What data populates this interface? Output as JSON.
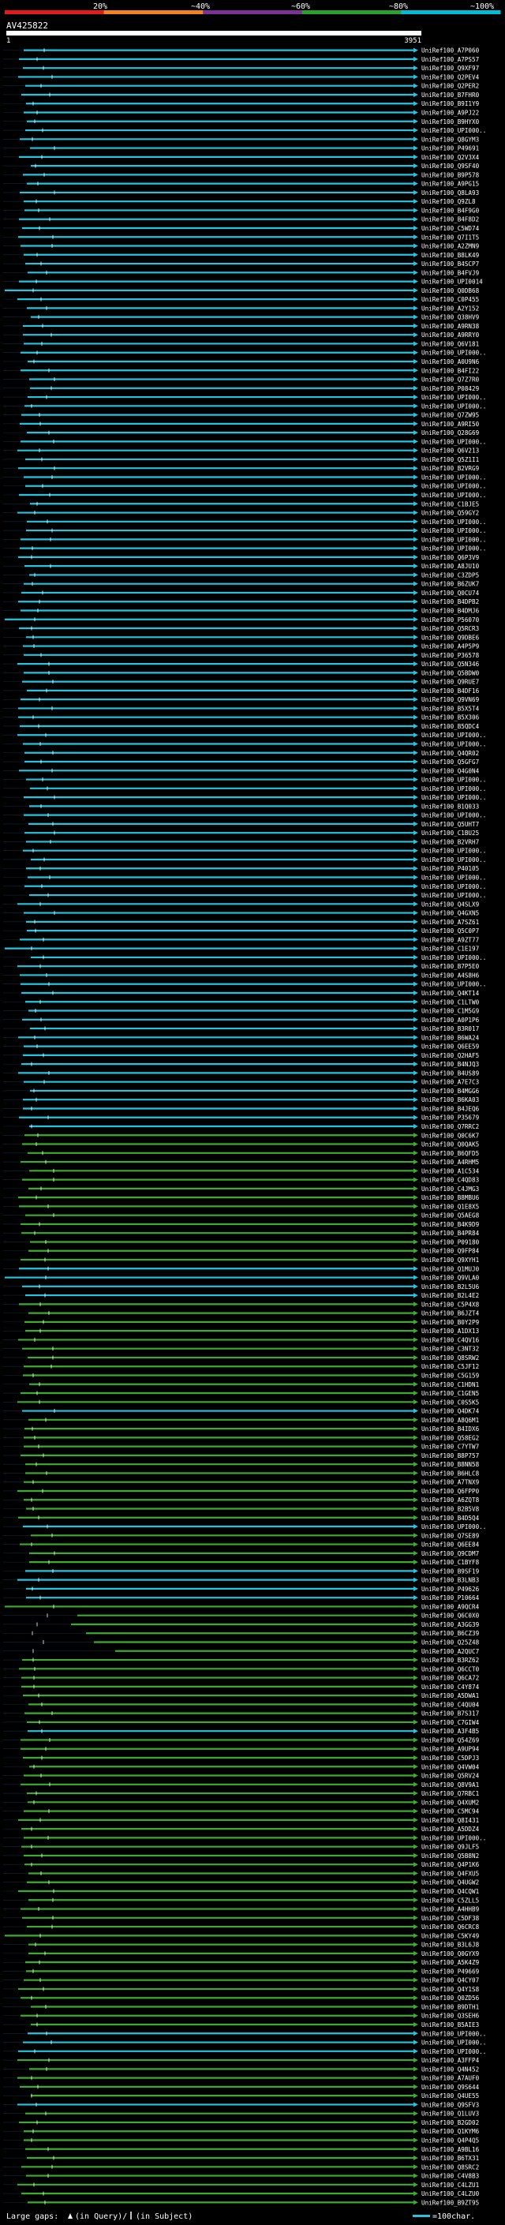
{
  "header": {
    "query_id": "AV425822",
    "scale_start": "1",
    "scale_end": "3951",
    "scale_ticks": [
      "20%",
      "~40%",
      "~60%",
      "~80%",
      "~100%"
    ],
    "scale_colors": [
      "#e41a1c",
      "#f58220",
      "#7b3294",
      "#2ca02c",
      "#00bcd4"
    ]
  },
  "legend": {
    "large_gaps_label": "Large gaps:",
    "in_query_label": "(in Query)/",
    "in_subject_label": "(in Subject)",
    "scale_label": "=100char."
  },
  "colors": {
    "cyan": "#22c5e0",
    "green": "#3cab2e",
    "white": "#ffffff",
    "black": "#000000"
  },
  "chart_data": {
    "type": "alignment",
    "query_length": 3951,
    "hits": [
      {
        "label": "UniRef100_A7P060",
        "color": "cyan"
      },
      {
        "label": "UniRef100_A7PS57",
        "color": "cyan"
      },
      {
        "label": "UniRef100_Q9XF97",
        "color": "cyan"
      },
      {
        "label": "UniRef100_Q2PEV4",
        "color": "cyan"
      },
      {
        "label": "UniRef100_Q2PER2",
        "color": "cyan"
      },
      {
        "label": "UniRef100_B7FHR0",
        "color": "cyan"
      },
      {
        "label": "UniRef100_B9I1Y9",
        "color": "cyan"
      },
      {
        "label": "UniRef100_A9PJ22",
        "color": "cyan"
      },
      {
        "label": "UniRef100_B9HYX0",
        "color": "cyan"
      },
      {
        "label": "UniRef100_UPI000..",
        "color": "cyan"
      },
      {
        "label": "UniRef100_Q8GYM3",
        "color": "cyan"
      },
      {
        "label": "UniRef100_P49691",
        "color": "cyan"
      },
      {
        "label": "UniRef100_Q2V3X4",
        "color": "cyan"
      },
      {
        "label": "UniRef100_Q9SF40",
        "color": "cyan"
      },
      {
        "label": "UniRef100_B9P578",
        "color": "cyan"
      },
      {
        "label": "UniRef100_A9PG15",
        "color": "cyan"
      },
      {
        "label": "UniRef100_Q8LA93",
        "color": "cyan"
      },
      {
        "label": "UniRef100_Q9ZL8",
        "color": "cyan"
      },
      {
        "label": "UniRef100_B4F9G0",
        "color": "cyan"
      },
      {
        "label": "UniRef100_B4F8D2",
        "color": "cyan"
      },
      {
        "label": "UniRef100_C5WD74",
        "color": "cyan"
      },
      {
        "label": "UniRef100_Q7I1T5",
        "color": "cyan"
      },
      {
        "label": "UniRef100_A2ZMN9",
        "color": "cyan"
      },
      {
        "label": "UniRef100_B8LK49",
        "color": "cyan"
      },
      {
        "label": "UniRef100_B4SCP7",
        "color": "cyan"
      },
      {
        "label": "UniRef100_B4FVJ9",
        "color": "cyan"
      },
      {
        "label": "UniRef100_UPI0014",
        "color": "cyan"
      },
      {
        "label": "UniRef100_Q0DB68",
        "color": "cyan"
      },
      {
        "label": "UniRef100_C0P455",
        "color": "cyan"
      },
      {
        "label": "UniRef100_A2Y152",
        "color": "cyan"
      },
      {
        "label": "UniRef100_Q38HV9",
        "color": "cyan"
      },
      {
        "label": "UniRef100_A9RN38",
        "color": "cyan"
      },
      {
        "label": "UniRef100_A9RRY0",
        "color": "cyan"
      },
      {
        "label": "UniRef100_Q6V181",
        "color": "cyan"
      },
      {
        "label": "UniRef100_UPI000..",
        "color": "cyan"
      },
      {
        "label": "UniRef100_A0U9N6",
        "color": "cyan"
      },
      {
        "label": "UniRef100_B4FI22",
        "color": "cyan"
      },
      {
        "label": "UniRef100_Q7Z7R0",
        "color": "cyan"
      },
      {
        "label": "UniRef100_P08429",
        "color": "cyan"
      },
      {
        "label": "UniRef100_UPI000..",
        "color": "cyan"
      },
      {
        "label": "UniRef100_UPI000..",
        "color": "cyan"
      },
      {
        "label": "UniRef100_Q7ZW95",
        "color": "cyan"
      },
      {
        "label": "UniRef100_A9RI50",
        "color": "cyan"
      },
      {
        "label": "UniRef100_Q28G69",
        "color": "cyan"
      },
      {
        "label": "UniRef100_UPI000..",
        "color": "cyan"
      },
      {
        "label": "UniRef100_Q6V213",
        "color": "cyan"
      },
      {
        "label": "UniRef100_Q5Z1I1",
        "color": "cyan"
      },
      {
        "label": "UniRef100_B2VRG9",
        "color": "cyan"
      },
      {
        "label": "UniRef100_UPI000..",
        "color": "cyan"
      },
      {
        "label": "UniRef100_UPI000..",
        "color": "cyan"
      },
      {
        "label": "UniRef100_UPI000..",
        "color": "cyan"
      },
      {
        "label": "UniRef100_C1BJE5",
        "color": "cyan"
      },
      {
        "label": "UniRef100_Q59GY2",
        "color": "cyan"
      },
      {
        "label": "UniRef100_UPI000..",
        "color": "cyan"
      },
      {
        "label": "UniRef100_UPI000..",
        "color": "cyan"
      },
      {
        "label": "UniRef100_UPI000..",
        "color": "cyan"
      },
      {
        "label": "UniRef100_UPI000..",
        "color": "cyan"
      },
      {
        "label": "UniRef100_Q6P3V9",
        "color": "cyan"
      },
      {
        "label": "UniRef100_A8JU10",
        "color": "cyan"
      },
      {
        "label": "UniRef100_C3ZDP5",
        "color": "cyan"
      },
      {
        "label": "UniRef100_B6ZUK7",
        "color": "cyan"
      },
      {
        "label": "UniRef100_Q0CU74",
        "color": "cyan"
      },
      {
        "label": "UniRef100_B4DPB2",
        "color": "cyan"
      },
      {
        "label": "UniRef100_B4DMJ6",
        "color": "cyan"
      },
      {
        "label": "UniRef100_P56070",
        "color": "cyan"
      },
      {
        "label": "UniRef100_Q5RCR3",
        "color": "cyan"
      },
      {
        "label": "UniRef100_Q9DBE6",
        "color": "cyan"
      },
      {
        "label": "UniRef100_A4P5P9",
        "color": "cyan"
      },
      {
        "label": "UniRef100_P36578",
        "color": "cyan"
      },
      {
        "label": "UniRef100_Q5N346",
        "color": "cyan"
      },
      {
        "label": "UniRef100_Q5BDW0",
        "color": "cyan"
      },
      {
        "label": "UniRef100_Q9RUE7",
        "color": "cyan"
      },
      {
        "label": "UniRef100_B4DF16",
        "color": "cyan"
      },
      {
        "label": "UniRef100_Q9VN69",
        "color": "cyan"
      },
      {
        "label": "UniRef100_B5X5T4",
        "color": "cyan"
      },
      {
        "label": "UniRef100_B5X306",
        "color": "cyan"
      },
      {
        "label": "UniRef100_B5QDC4",
        "color": "cyan"
      },
      {
        "label": "UniRef100_UPI000..",
        "color": "cyan"
      },
      {
        "label": "UniRef100_UPI000..",
        "color": "cyan"
      },
      {
        "label": "UniRef100_Q4QR02",
        "color": "cyan"
      },
      {
        "label": "UniRef100_Q5GFG7",
        "color": "cyan"
      },
      {
        "label": "UniRef100_Q4G0N4",
        "color": "cyan"
      },
      {
        "label": "UniRef100_UPI000..",
        "color": "cyan"
      },
      {
        "label": "UniRef100_UPI000..",
        "color": "cyan"
      },
      {
        "label": "UniRef100_UPI000..",
        "color": "cyan"
      },
      {
        "label": "UniRef100_B1Q033",
        "color": "cyan"
      },
      {
        "label": "UniRef100_UPI000..",
        "color": "cyan"
      },
      {
        "label": "UniRef100_Q5UHT7",
        "color": "cyan"
      },
      {
        "label": "UniRef100_C1BU25",
        "color": "cyan"
      },
      {
        "label": "UniRef100_B2VRH7",
        "color": "cyan"
      },
      {
        "label": "UniRef100_UPI000..",
        "color": "cyan"
      },
      {
        "label": "UniRef100_UPI000..",
        "color": "cyan"
      },
      {
        "label": "UniRef100_P40105",
        "color": "cyan"
      },
      {
        "label": "UniRef100_UPI000..",
        "color": "cyan"
      },
      {
        "label": "UniRef100_UPI000..",
        "color": "cyan"
      },
      {
        "label": "UniRef100_UPI000..",
        "color": "cyan"
      },
      {
        "label": "UniRef100_Q4SLX9",
        "color": "cyan"
      },
      {
        "label": "UniRef100_Q4GXN5",
        "color": "cyan"
      },
      {
        "label": "UniRef100_A7SZ61",
        "color": "cyan"
      },
      {
        "label": "UniRef100_Q5C0P7",
        "color": "cyan"
      },
      {
        "label": "UniRef100_A9ZT77",
        "color": "cyan"
      },
      {
        "label": "UniRef100_C1E197",
        "color": "cyan"
      },
      {
        "label": "UniRef100_UPI000..",
        "color": "cyan"
      },
      {
        "label": "UniRef100_B7P5E0",
        "color": "cyan"
      },
      {
        "label": "UniRef100_A4S8H6",
        "color": "cyan"
      },
      {
        "label": "UniRef100_UPI000..",
        "color": "cyan"
      },
      {
        "label": "UniRef100_Q4KT14",
        "color": "cyan"
      },
      {
        "label": "UniRef100_C1LTW0",
        "color": "cyan"
      },
      {
        "label": "UniRef100_C1M5G9",
        "color": "cyan"
      },
      {
        "label": "UniRef100_A0P1P6",
        "color": "cyan"
      },
      {
        "label": "UniRef100_B3R017",
        "color": "cyan"
      },
      {
        "label": "UniRef100_B6WA24",
        "color": "cyan"
      },
      {
        "label": "UniRef100_Q6EE59",
        "color": "cyan"
      },
      {
        "label": "UniRef100_Q2HAF5",
        "color": "cyan"
      },
      {
        "label": "UniRef100_B4NJQ3",
        "color": "cyan"
      },
      {
        "label": "UniRef100_B4US89",
        "color": "cyan"
      },
      {
        "label": "UniRef100_A7E7C3",
        "color": "cyan"
      },
      {
        "label": "UniRef100_B4MGG6",
        "color": "cyan"
      },
      {
        "label": "UniRef100_B6KA03",
        "color": "cyan"
      },
      {
        "label": "UniRef100_B4JEQ6",
        "color": "cyan"
      },
      {
        "label": "UniRef100_P35679",
        "color": "cyan"
      },
      {
        "label": "UniRef100_Q7RRC2",
        "color": "cyan"
      },
      {
        "label": "UniRef100_Q0C6K7",
        "color": "green"
      },
      {
        "label": "UniRef100_Q0QAK5",
        "color": "green"
      },
      {
        "label": "UniRef100_B6QFD5",
        "color": "green"
      },
      {
        "label": "UniRef100_A4RHM5",
        "color": "green"
      },
      {
        "label": "UniRef100_A1C534",
        "color": "green"
      },
      {
        "label": "UniRef100_C4QD83",
        "color": "green"
      },
      {
        "label": "UniRef100_C4JMG3",
        "color": "green"
      },
      {
        "label": "UniRef100_B8MBU6",
        "color": "green"
      },
      {
        "label": "UniRef100_Q1E8X5",
        "color": "green"
      },
      {
        "label": "UniRef100_Q5AEG8",
        "color": "green"
      },
      {
        "label": "UniRef100_B4K9D9",
        "color": "green"
      },
      {
        "label": "UniRef100_B4PR84",
        "color": "green"
      },
      {
        "label": "UniRef100_P09180",
        "color": "green"
      },
      {
        "label": "UniRef100_Q9FP84",
        "color": "green"
      },
      {
        "label": "UniRef100_Q9XYH1",
        "color": "green"
      },
      {
        "label": "UniRef100_Q1MUJ0",
        "color": "cyan"
      },
      {
        "label": "UniRef100_Q9VLA0",
        "color": "cyan"
      },
      {
        "label": "UniRef100_B2L5U6",
        "color": "cyan"
      },
      {
        "label": "UniRef100_B2L4E2",
        "color": "cyan"
      },
      {
        "label": "UniRef100_C5P4X8",
        "color": "green"
      },
      {
        "label": "UniRef100_B6JZT4",
        "color": "green"
      },
      {
        "label": "UniRef100_B0Y2P9",
        "color": "green"
      },
      {
        "label": "UniRef100_A1DX13",
        "color": "green"
      },
      {
        "label": "UniRef100_C4QV16",
        "color": "green"
      },
      {
        "label": "UniRef100_C3NT32",
        "color": "green"
      },
      {
        "label": "UniRef100_Q8SRW2",
        "color": "green"
      },
      {
        "label": "UniRef100_C5JF12",
        "color": "green"
      },
      {
        "label": "UniRef100_C5G159",
        "color": "green"
      },
      {
        "label": "UniRef100_C1HDN1",
        "color": "green"
      },
      {
        "label": "UniRef100_C1GEN5",
        "color": "green"
      },
      {
        "label": "UniRef100_C0S5K5",
        "color": "green"
      },
      {
        "label": "UniRef100_Q4DK74",
        "color": "cyan"
      },
      {
        "label": "UniRef100_A8Q6M1",
        "color": "green"
      },
      {
        "label": "UniRef100_B4IDX6",
        "color": "green"
      },
      {
        "label": "UniRef100_Q58EG2",
        "color": "green"
      },
      {
        "label": "UniRef100_C7YTW7",
        "color": "green"
      },
      {
        "label": "UniRef100_B8P757",
        "color": "green"
      },
      {
        "label": "UniRef100_B8NN58",
        "color": "green"
      },
      {
        "label": "UniRef100_B6HLC8",
        "color": "green"
      },
      {
        "label": "UniRef100_A7TNX9",
        "color": "green"
      },
      {
        "label": "UniRef100_Q6FPP0",
        "color": "green"
      },
      {
        "label": "UniRef100_A6ZQT8",
        "color": "green"
      },
      {
        "label": "UniRef100_B2B5V8",
        "color": "green"
      },
      {
        "label": "UniRef100_B4D5Q4",
        "color": "green"
      },
      {
        "label": "UniRef100_UPI000..",
        "color": "cyan"
      },
      {
        "label": "UniRef100_Q7SE89",
        "color": "green"
      },
      {
        "label": "UniRef100_Q6EE84",
        "color": "green"
      },
      {
        "label": "UniRef100_Q9CDM7",
        "color": "green"
      },
      {
        "label": "UniRef100_C1BYF8",
        "color": "green"
      },
      {
        "label": "UniRef100_B9SF19",
        "color": "cyan"
      },
      {
        "label": "UniRef100_B3LNB3",
        "color": "cyan"
      },
      {
        "label": "UniRef100_P49626",
        "color": "cyan"
      },
      {
        "label": "UniRef100_P10664",
        "color": "cyan"
      },
      {
        "label": "UniRef100_A9QCR4",
        "color": "green"
      },
      {
        "label": "UniRef100_Q6C0X0",
        "color": "green"
      },
      {
        "label": "UniRef100_A3GG39",
        "color": "green"
      },
      {
        "label": "UniRef100_B6CZ39",
        "color": "green"
      },
      {
        "label": "UniRef100_Q25Z48",
        "color": "green"
      },
      {
        "label": "UniRef100_A2QUC7",
        "color": "green"
      },
      {
        "label": "UniRef100_B3RZ62",
        "color": "green"
      },
      {
        "label": "UniRef100_Q6CCT0",
        "color": "green"
      },
      {
        "label": "UniRef100_Q6CA72",
        "color": "green"
      },
      {
        "label": "UniRef100_C4Y874",
        "color": "green"
      },
      {
        "label": "UniRef100_A5DWA1",
        "color": "green"
      },
      {
        "label": "UniRef100_C4QU04",
        "color": "green"
      },
      {
        "label": "UniRef100_B7S317",
        "color": "green"
      },
      {
        "label": "UniRef100_C7GIW4",
        "color": "green"
      },
      {
        "label": "UniRef100_A3F4B5",
        "color": "cyan"
      },
      {
        "label": "UniRef100_Q54Z69",
        "color": "green"
      },
      {
        "label": "UniRef100_A9UP94",
        "color": "green"
      },
      {
        "label": "UniRef100_C5DPJ3",
        "color": "green"
      },
      {
        "label": "UniRef100_Q4VW04",
        "color": "green"
      },
      {
        "label": "UniRef100_Q5RV24",
        "color": "green"
      },
      {
        "label": "UniRef100_Q8V9A1",
        "color": "green"
      },
      {
        "label": "UniRef100_Q7RBC1",
        "color": "green"
      },
      {
        "label": "UniRef100_Q4XUM2",
        "color": "green"
      },
      {
        "label": "UniRef100_C5MC94",
        "color": "green"
      },
      {
        "label": "UniRef100_Q8I431",
        "color": "green"
      },
      {
        "label": "UniRef100_A5DDZ4",
        "color": "green"
      },
      {
        "label": "UniRef100_UPI000..",
        "color": "green"
      },
      {
        "label": "UniRef100_Q9JLF5",
        "color": "green"
      },
      {
        "label": "UniRef100_Q5B8N2",
        "color": "green"
      },
      {
        "label": "UniRef100_Q4P1K6",
        "color": "green"
      },
      {
        "label": "UniRef100_Q4FXU5",
        "color": "green"
      },
      {
        "label": "UniRef100_Q4UGW2",
        "color": "green"
      },
      {
        "label": "UniRef100_Q4CQW1",
        "color": "green"
      },
      {
        "label": "UniRef100_C5ZLL5",
        "color": "green"
      },
      {
        "label": "UniRef100_A4HHB9",
        "color": "green"
      },
      {
        "label": "UniRef100_C5DF38",
        "color": "green"
      },
      {
        "label": "UniRef100_Q6CRC8",
        "color": "green"
      },
      {
        "label": "UniRef100_C5KY49",
        "color": "green"
      },
      {
        "label": "UniRef100_B3L6J8",
        "color": "green"
      },
      {
        "label": "UniRef100_Q0GYX9",
        "color": "green"
      },
      {
        "label": "UniRef100_A5K4Z9",
        "color": "green"
      },
      {
        "label": "UniRef100_P49669",
        "color": "green"
      },
      {
        "label": "UniRef100_Q4CY07",
        "color": "green"
      },
      {
        "label": "UniRef100_Q4Y1S8",
        "color": "green"
      },
      {
        "label": "UniRef100_Q0ZD56",
        "color": "green"
      },
      {
        "label": "UniRef100_B9DTH1",
        "color": "green"
      },
      {
        "label": "UniRef100_Q3SEH6",
        "color": "green"
      },
      {
        "label": "UniRef100_B5AIE3",
        "color": "green"
      },
      {
        "label": "UniRef100_UPI000..",
        "color": "cyan"
      },
      {
        "label": "UniRef100_UPI000..",
        "color": "cyan"
      },
      {
        "label": "UniRef100_UPI000..",
        "color": "cyan"
      },
      {
        "label": "UniRef100_A3FFP4",
        "color": "green"
      },
      {
        "label": "UniRef100_Q4N452",
        "color": "green"
      },
      {
        "label": "UniRef100_A7AUF0",
        "color": "green"
      },
      {
        "label": "UniRef100_Q9S644",
        "color": "green"
      },
      {
        "label": "UniRef100_Q4UE55",
        "color": "green"
      },
      {
        "label": "UniRef100_Q9SFV3",
        "color": "cyan"
      },
      {
        "label": "UniRef100_Q1LUV3",
        "color": "green"
      },
      {
        "label": "UniRef100_B2GD02",
        "color": "green"
      },
      {
        "label": "UniRef100_Q1KYM6",
        "color": "green"
      },
      {
        "label": "UniRef100_Q4P4Q5",
        "color": "green"
      },
      {
        "label": "UniRef100_A9BL16",
        "color": "green"
      },
      {
        "label": "UniRef100_B6TX31",
        "color": "green"
      },
      {
        "label": "UniRef100_Q8SRC2",
        "color": "green"
      },
      {
        "label": "UniRef100_C4V8B3",
        "color": "green"
      },
      {
        "label": "UniRef100_C4LZU1",
        "color": "green"
      },
      {
        "label": "UniRef100_C4LZU0",
        "color": "green"
      },
      {
        "label": "UniRef100_B9ZT95",
        "color": "green"
      }
    ]
  }
}
